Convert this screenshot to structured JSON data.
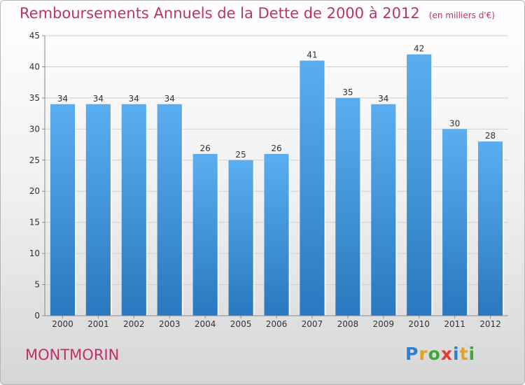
{
  "title": "Remboursements Annuels de la Dette de 2000 à 2012",
  "subtitle": "(en milliers d'€)",
  "commune": "MONTMORIN",
  "logo": {
    "text": "Proxiti",
    "letters": [
      {
        "ch": "P",
        "color": "#2e7fd0"
      },
      {
        "ch": "r",
        "color": "#e8a020"
      },
      {
        "ch": "o",
        "color": "#3da83d"
      },
      {
        "ch": "x",
        "color": "#e33b2b"
      },
      {
        "ch": "i",
        "color": "#2e7fd0"
      },
      {
        "ch": "t",
        "color": "#e8a020"
      },
      {
        "ch": "i",
        "color": "#3da83d"
      }
    ]
  },
  "chart_data": {
    "type": "bar",
    "categories": [
      "2000",
      "2001",
      "2002",
      "2003",
      "2004",
      "2005",
      "2006",
      "2007",
      "2008",
      "2009",
      "2010",
      "2011",
      "2012"
    ],
    "values": [
      34,
      34,
      34,
      34,
      26,
      25,
      26,
      41,
      35,
      34,
      42,
      30,
      28
    ],
    "title": "Remboursements Annuels de la Dette de 2000 à 2012",
    "subtitle": "(en milliers d'€)",
    "xlabel": "",
    "ylabel": "",
    "ylim": [
      0,
      45
    ],
    "yticks": [
      0,
      5,
      10,
      15,
      20,
      25,
      30,
      35,
      40,
      45
    ],
    "grid": true,
    "legend": "none",
    "bar_color": "#4f9fe2",
    "label_color": "#c0306a"
  }
}
